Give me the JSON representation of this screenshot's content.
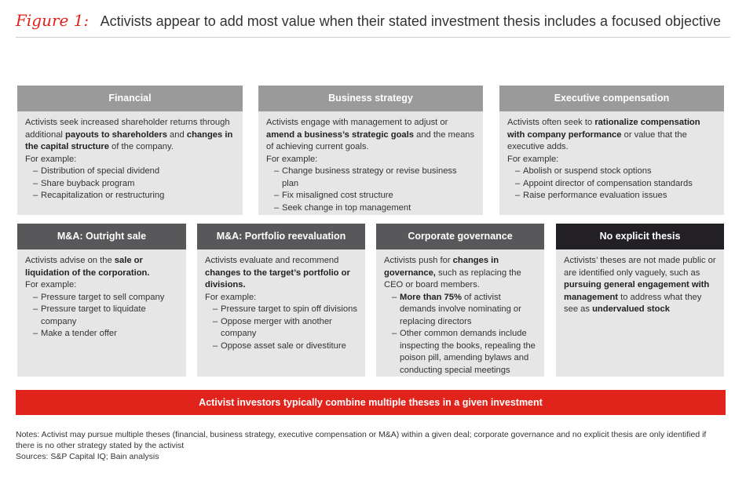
{
  "figure_label": "Figure 1:",
  "title": "Activists appear to add most value when their stated investment thesis includes a focused objective",
  "boxes": {
    "financial": {
      "header": "Financial",
      "intro": [
        {
          "t": "Activists seek increased shareholder returns through additional "
        },
        {
          "t": "payouts to shareholders",
          "b": true
        },
        {
          "t": " and "
        },
        {
          "t": "changes in the capital structure",
          "b": true
        },
        {
          "t": " of the company."
        }
      ],
      "example_label": "For example:",
      "examples": [
        "Distribution of special dividend",
        "Share buyback program",
        "Recapitalization or restructuring"
      ]
    },
    "business_strategy": {
      "header": "Business strategy",
      "intro": [
        {
          "t": "Activists engage with management to adjust or "
        },
        {
          "t": "amend a business’s strategic goals",
          "b": true
        },
        {
          "t": " and the means of achieving current goals."
        }
      ],
      "example_label": "For example:",
      "examples": [
        "Change business strategy or revise business plan",
        "Fix misaligned cost structure",
        "Seek change in top management"
      ]
    },
    "executive_compensation": {
      "header": "Executive compensation",
      "intro": [
        {
          "t": "Activists often seek to "
        },
        {
          "t": "rationalize compensation with company performance",
          "b": true
        },
        {
          "t": " or value that the executive adds."
        }
      ],
      "example_label": "For example:",
      "examples": [
        "Abolish or suspend stock options",
        "Appoint director of compensation standards",
        "Raise performance evaluation issues"
      ]
    },
    "ma_outright_sale": {
      "header": "M&A: Outright sale",
      "intro": [
        {
          "t": "Activists advise on the "
        },
        {
          "t": "sale or liquidation of the corporation.",
          "b": true
        }
      ],
      "example_label": "For example:",
      "examples": [
        "Pressure target to sell company",
        "Pressure target to liquidate company",
        "Make a tender offer"
      ]
    },
    "ma_portfolio": {
      "header": "M&A: Portfolio reevaluation",
      "intro": [
        {
          "t": "Activists evaluate and recommend "
        },
        {
          "t": "changes to the target’s portfolio or divisions.",
          "b": true
        }
      ],
      "example_label": "For example:",
      "examples": [
        "Pressure target to spin off divisions",
        "Oppose merger with another company",
        "Oppose asset sale or divestiture"
      ]
    },
    "corporate_governance": {
      "header": "Corporate governance",
      "intro": [
        {
          "t": "Activists push for "
        },
        {
          "t": "changes in governance,",
          "b": true
        },
        {
          "t": " such as replacing the CEO or board members."
        }
      ],
      "examples": [
        [
          {
            "t": "More than 75%",
            "b": true
          },
          {
            "t": " of activist demands involve nominating or replacing directors"
          }
        ],
        [
          {
            "t": "Other common demands include inspecting the books, repealing the poison pill, amending bylaws and conducting special meetings"
          }
        ]
      ]
    },
    "no_explicit_thesis": {
      "header": "No explicit thesis",
      "intro": [
        {
          "t": "Activists’ theses are not made public or are identified only vaguely, such as "
        },
        {
          "t": "pursuing general engagement with management",
          "b": true
        },
        {
          "t": " to address what they see as "
        },
        {
          "t": "undervalued stock",
          "b": true
        }
      ]
    }
  },
  "banner": "Activist investors typically combine multiple theses in a given investment",
  "notes": "Notes: Activist may pursue multiple theses (financial, business strategy, executive compensation or M&A) within a given deal; corporate governance and no explicit thesis are only identified if there is no other strategy stated by the activist",
  "sources": "Sources: S&P Capital IQ; Bain analysis",
  "colors": {
    "accent": "#e0231b",
    "header_light": "#9a9a9a",
    "header_dark": "#58585a",
    "header_black": "#222024",
    "box_bg": "#e6e6e6"
  }
}
